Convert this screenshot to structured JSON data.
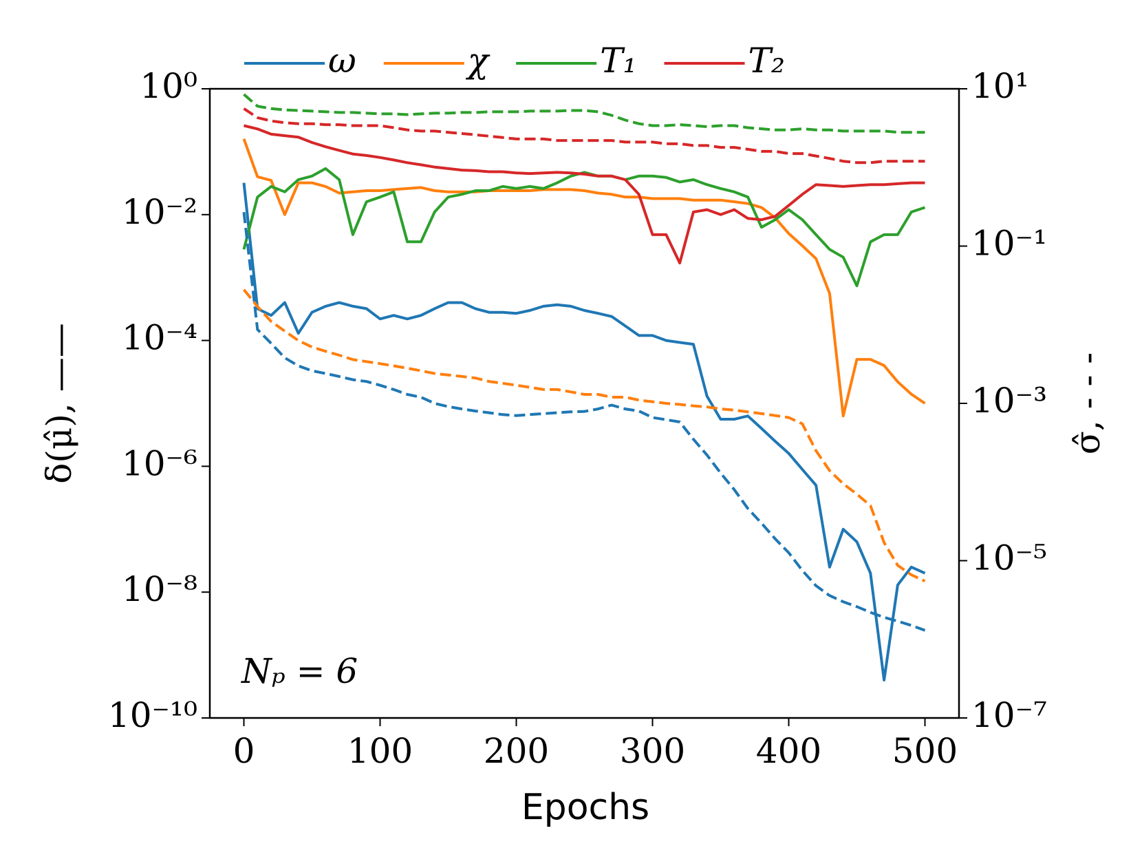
{
  "chart_data": {
    "type": "line",
    "xlabel": "Epochs",
    "ylabel": "δ(μ̂), ——",
    "y2label": "σ̂, - - -",
    "annotation": "Nₚ = 6",
    "yscale": "log",
    "y2scale": "log",
    "legend": "top",
    "xlim": [
      -25,
      525
    ],
    "xticks": [
      0,
      100,
      200,
      300,
      400,
      500
    ],
    "ylim": [
      1e-10,
      1
    ],
    "yticks": [
      {
        "value": 1,
        "label": "10⁰"
      },
      {
        "value": 0.01,
        "label": "10⁻²"
      },
      {
        "value": 0.0001,
        "label": "10⁻⁴"
      },
      {
        "value": 1e-06,
        "label": "10⁻⁶"
      },
      {
        "value": 1e-08,
        "label": "10⁻⁸"
      },
      {
        "value": 1e-10,
        "label": "10⁻¹⁰"
      }
    ],
    "y2lim": [
      1e-07,
      10
    ],
    "y2ticks": [
      {
        "value": 10,
        "label": "10¹"
      },
      {
        "value": 0.1,
        "label": "10⁻¹"
      },
      {
        "value": 0.001,
        "label": "10⁻³"
      },
      {
        "value": 1e-05,
        "label": "10⁻⁵"
      },
      {
        "value": 1e-07,
        "label": "10⁻⁷"
      }
    ],
    "x": [
      0,
      10,
      20,
      30,
      40,
      50,
      60,
      70,
      80,
      90,
      100,
      110,
      120,
      130,
      140,
      150,
      160,
      170,
      180,
      190,
      200,
      210,
      220,
      230,
      240,
      250,
      260,
      270,
      280,
      290,
      300,
      310,
      320,
      330,
      340,
      350,
      360,
      370,
      380,
      390,
      400,
      410,
      420,
      430,
      440,
      450,
      460,
      470,
      480,
      490,
      500
    ],
    "series": [
      {
        "name": "ω",
        "color": "#1f77b4",
        "linestyle": "solid",
        "axis": "y",
        "values": [
          0.032,
          0.00032,
          0.00025,
          0.0004,
          0.00013,
          0.00028,
          0.00035,
          0.0004,
          0.00035,
          0.00032,
          0.00022,
          0.00025,
          0.00022,
          0.00025,
          0.00032,
          0.0004,
          0.0004,
          0.00032,
          0.00028,
          0.00028,
          0.00027,
          0.0003,
          0.00035,
          0.00037,
          0.00035,
          0.0003,
          0.00027,
          0.00024,
          0.00017,
          0.00012,
          0.00012,
          0.0001,
          9.3e-05,
          8.7e-05,
          1.3e-05,
          5.6e-06,
          5.6e-06,
          6.3e-06,
          4e-06,
          2.5e-06,
          1.6e-06,
          8.9e-07,
          5e-07,
          2.5e-08,
          1e-07,
          6.3e-08,
          2e-08,
          4e-10,
          1.3e-08,
          2.5e-08,
          2e-08
        ]
      },
      {
        "name": "χ",
        "color": "#ff7f0e",
        "linestyle": "solid",
        "axis": "y",
        "values": [
          0.16,
          0.04,
          0.035,
          0.01,
          0.032,
          0.032,
          0.028,
          0.022,
          0.023,
          0.024,
          0.024,
          0.025,
          0.026,
          0.027,
          0.024,
          0.023,
          0.023,
          0.023,
          0.024,
          0.024,
          0.024,
          0.024,
          0.025,
          0.025,
          0.025,
          0.024,
          0.022,
          0.021,
          0.019,
          0.019,
          0.018,
          0.018,
          0.018,
          0.017,
          0.017,
          0.017,
          0.016,
          0.015,
          0.013,
          0.0089,
          0.005,
          0.0032,
          0.002,
          0.00056,
          6.3e-06,
          5e-05,
          5e-05,
          4e-05,
          2.2e-05,
          1.4e-05,
          1e-05
        ]
      },
      {
        "name": "T₁",
        "color": "#2ca02c",
        "linestyle": "solid",
        "axis": "y",
        "values": [
          0.0028,
          0.019,
          0.028,
          0.023,
          0.036,
          0.041,
          0.054,
          0.036,
          0.0048,
          0.016,
          0.019,
          0.023,
          0.0037,
          0.0037,
          0.011,
          0.019,
          0.021,
          0.024,
          0.024,
          0.028,
          0.026,
          0.028,
          0.026,
          0.032,
          0.041,
          0.047,
          0.041,
          0.041,
          0.036,
          0.041,
          0.041,
          0.039,
          0.033,
          0.036,
          0.03,
          0.026,
          0.023,
          0.019,
          0.0063,
          0.0083,
          0.012,
          0.0083,
          0.0048,
          0.0028,
          0.0021,
          0.00074,
          0.0037,
          0.0048,
          0.0048,
          0.011,
          0.013
        ]
      },
      {
        "name": "T₂",
        "color": "#d62728",
        "linestyle": "solid",
        "axis": "y",
        "values": [
          0.26,
          0.23,
          0.19,
          0.18,
          0.17,
          0.14,
          0.12,
          0.105,
          0.092,
          0.087,
          0.081,
          0.074,
          0.067,
          0.062,
          0.057,
          0.054,
          0.051,
          0.05,
          0.048,
          0.048,
          0.046,
          0.045,
          0.046,
          0.047,
          0.046,
          0.044,
          0.041,
          0.041,
          0.036,
          0.021,
          0.0048,
          0.0048,
          0.0017,
          0.011,
          0.012,
          0.01,
          0.012,
          0.0087,
          0.0083,
          0.0094,
          0.014,
          0.021,
          0.03,
          0.029,
          0.028,
          0.029,
          0.03,
          0.03,
          0.031,
          0.032,
          0.032
        ]
      },
      {
        "color": "#1f77b4",
        "linestyle": "dashed",
        "axis": "y2",
        "values": [
          0.27,
          0.0087,
          0.0058,
          0.0038,
          0.003,
          0.0026,
          0.0024,
          0.0022,
          0.002,
          0.0019,
          0.0017,
          0.0015,
          0.0013,
          0.0012,
          0.001,
          0.00091,
          0.00085,
          0.0008,
          0.00076,
          0.00072,
          0.0007,
          0.00072,
          0.00074,
          0.00076,
          0.00078,
          0.00079,
          0.00085,
          0.00095,
          0.00085,
          0.0008,
          0.00066,
          0.00062,
          0.00058,
          0.00035,
          0.00022,
          0.00013,
          8e-05,
          4.6e-05,
          3e-05,
          1.9e-05,
          1.26e-05,
          7.5e-06,
          4.8e-06,
          3.6e-06,
          3e-06,
          2.6e-06,
          2.2e-06,
          1.9e-06,
          1.7e-06,
          1.5e-06,
          1.3e-06
        ]
      },
      {
        "color": "#ff7f0e",
        "linestyle": "dashed",
        "axis": "y2",
        "values": [
          0.028,
          0.017,
          0.011,
          0.0083,
          0.0063,
          0.0052,
          0.0046,
          0.0041,
          0.0036,
          0.0034,
          0.0032,
          0.003,
          0.0028,
          0.0026,
          0.0024,
          0.0023,
          0.0022,
          0.0021,
          0.0019,
          0.0018,
          0.0017,
          0.0016,
          0.0015,
          0.0015,
          0.0014,
          0.0013,
          0.0013,
          0.0012,
          0.0012,
          0.0011,
          0.00105,
          0.001,
          0.00097,
          0.00093,
          0.0009,
          0.00085,
          0.00082,
          0.00078,
          0.00074,
          0.0007,
          0.00066,
          0.00055,
          0.00025,
          0.00014,
          9.5e-05,
          7e-05,
          5e-05,
          1.7e-05,
          8.7e-06,
          6.6e-06,
          5.5e-06
        ]
      },
      {
        "color": "#2ca02c",
        "linestyle": "dashed",
        "axis": "y2",
        "values": [
          8.5,
          6.0,
          5.6,
          5.4,
          5.3,
          5.2,
          5.1,
          5.0,
          5.0,
          4.9,
          4.8,
          4.8,
          4.7,
          4.8,
          4.9,
          4.9,
          5.0,
          5.0,
          5.1,
          5.1,
          5.1,
          5.2,
          5.2,
          5.2,
          5.3,
          5.3,
          5.1,
          4.6,
          4.0,
          3.6,
          3.4,
          3.4,
          3.5,
          3.4,
          3.3,
          3.4,
          3.4,
          3.2,
          3.1,
          3.0,
          3.0,
          3.1,
          3.0,
          3.0,
          2.9,
          2.9,
          2.9,
          2.9,
          2.8,
          2.8,
          2.8
        ]
      },
      {
        "color": "#d62728",
        "linestyle": "dashed",
        "axis": "y2",
        "values": [
          5.6,
          4.3,
          3.9,
          3.7,
          3.6,
          3.6,
          3.5,
          3.5,
          3.4,
          3.4,
          3.4,
          3.2,
          3.0,
          2.9,
          2.9,
          2.8,
          2.7,
          2.6,
          2.5,
          2.4,
          2.3,
          2.3,
          2.3,
          2.2,
          2.2,
          2.2,
          2.2,
          2.2,
          2.1,
          2.1,
          2.1,
          2.0,
          2.0,
          1.9,
          1.9,
          1.8,
          1.8,
          1.7,
          1.6,
          1.6,
          1.5,
          1.5,
          1.4,
          1.3,
          1.2,
          1.15,
          1.15,
          1.2,
          1.2,
          1.2,
          1.2
        ]
      }
    ]
  }
}
